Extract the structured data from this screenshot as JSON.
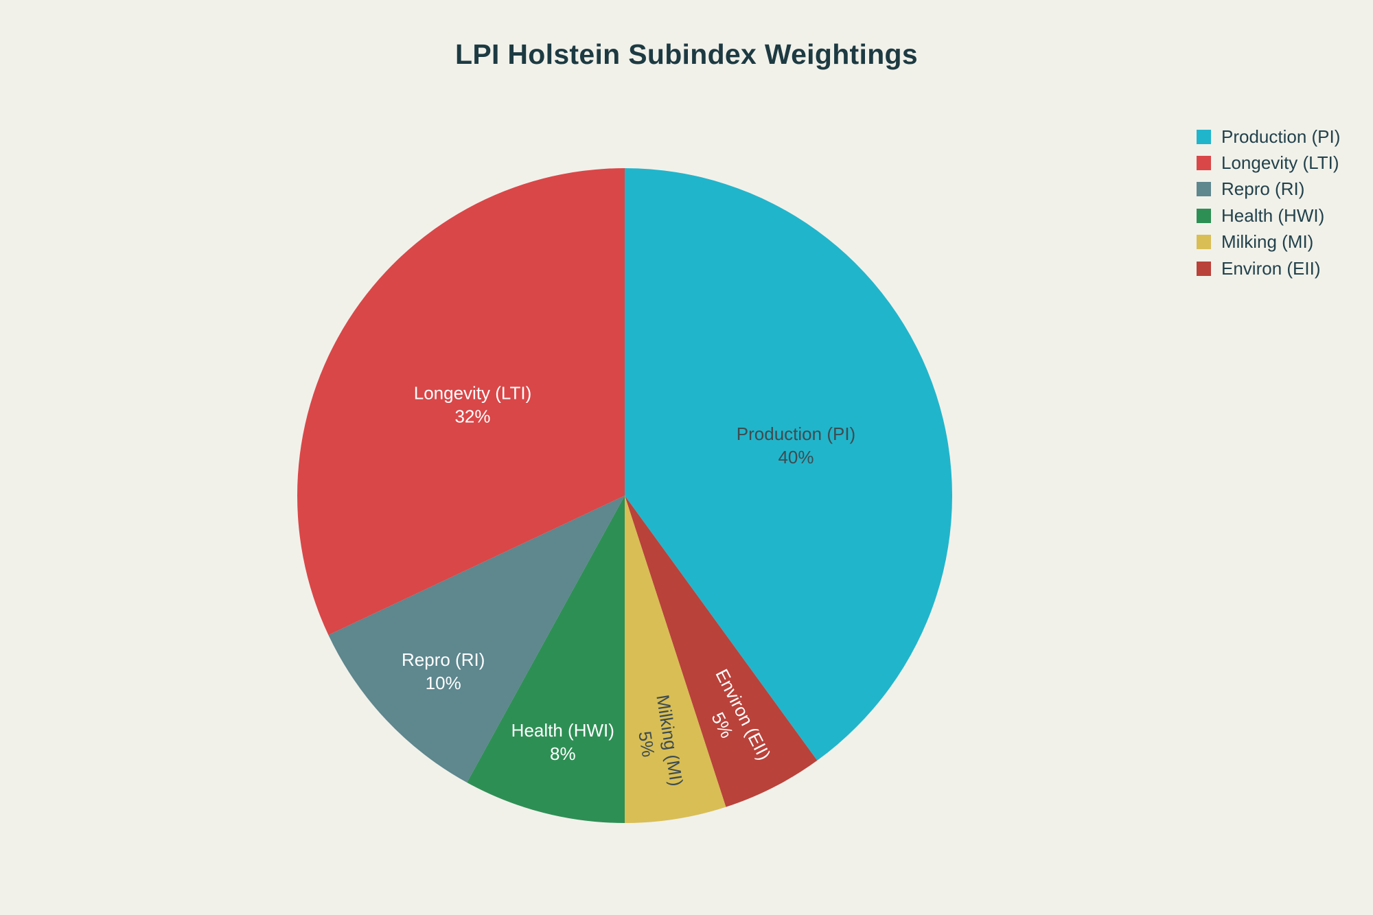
{
  "page": {
    "background": "#F1F1EA"
  },
  "title": {
    "text": "LPI Holstein Subindex Weightings",
    "color": "#1D3A42"
  },
  "legend": {
    "position": "right",
    "text_color": "#22414B",
    "items": [
      {
        "label": "Production (PI)",
        "color": "#21B5CB"
      },
      {
        "label": "Longevity (LTI)",
        "color": "#D94748"
      },
      {
        "label": "Repro (RI)",
        "color": "#5E878E"
      },
      {
        "label": "Health (HWI)",
        "color": "#2E8F55"
      },
      {
        "label": "Milking (MI)",
        "color": "#D9BE55"
      },
      {
        "label": "Environ (EII)",
        "color": "#B9423A"
      }
    ]
  },
  "chart_data": {
    "type": "pie",
    "title": "LPI Holstein Subindex Weightings",
    "categories": [
      "Production (PI)",
      "Longevity (LTI)",
      "Repro (RI)",
      "Health (HWI)",
      "Milking (MI)",
      "Environ (EII)"
    ],
    "values": [
      40,
      32,
      10,
      8,
      5,
      5
    ],
    "unit": "%",
    "colors": [
      "#21B5CB",
      "#D94748",
      "#5E878E",
      "#2E8F55",
      "#D9BE55",
      "#B9423A"
    ],
    "label_text_colors": [
      "#3D4C51",
      "#FFFFFF",
      "#FFFFFF",
      "#FFFFFF",
      "#3D4C51",
      "#FFFFFF"
    ],
    "labels_inside": true,
    "legend_position": "right",
    "start_angle_deg_clockwise_from_top": 0,
    "layout_note": "first (largest) slice starts at 12 o'clock extending clockwise; remaining slices placed counterclockwise from top"
  }
}
